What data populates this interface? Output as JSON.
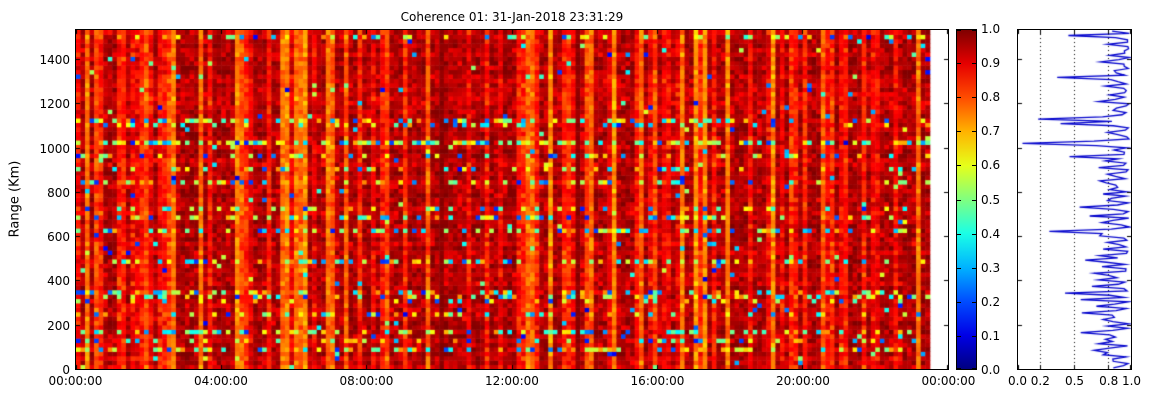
{
  "title": "Coherence 01: 31-Jan-2018 23:31:29",
  "axes": {
    "main": {
      "ylabel": "Range (Km)",
      "y_tick_labels": [
        "0",
        "200",
        "400",
        "600",
        "800",
        "1000",
        "1200",
        "1400"
      ],
      "y_tick_km": [
        0,
        200,
        400,
        600,
        800,
        1000,
        1200,
        1400
      ],
      "x_tick_labels": [
        "00:00:00",
        "04:00:00",
        "08:00:00",
        "12:00:00",
        "16:00:00",
        "20:00:00",
        "00:00:00"
      ],
      "x_tick_hours": [
        0,
        4,
        8,
        12,
        16,
        20,
        24
      ]
    },
    "colorbar": {
      "tick_labels": [
        "0.0",
        "0.1",
        "0.2",
        "0.3",
        "0.4",
        "0.5",
        "0.6",
        "0.7",
        "0.8",
        "0.9",
        "1.0"
      ],
      "tick_values": [
        0,
        0.1,
        0.2,
        0.3,
        0.4,
        0.5,
        0.6,
        0.7,
        0.8,
        0.9,
        1.0
      ]
    },
    "profile": {
      "x_tick_labels": [
        "0.0",
        "0.2",
        "0.5",
        "0.8",
        "1.0"
      ],
      "x_tick_values": [
        0,
        0.2,
        0.5,
        0.8,
        1.0
      ],
      "gridline_values": [
        0.2,
        0.5,
        0.8
      ]
    }
  },
  "colors": {
    "background": "#ffffff",
    "frame": "#000000",
    "profile_line": "#0000cc",
    "gridline": "#000000",
    "jet_stops": [
      "#000080",
      "#0000e6",
      "#004dff",
      "#00b3ff",
      "#1affe6",
      "#80ff80",
      "#e6ff1a",
      "#ffb300",
      "#ff4d00",
      "#e60000",
      "#800000"
    ]
  },
  "chart_data": [
    {
      "type": "heatmap",
      "title": "Coherence 01: 31-Jan-2018 23:31:29",
      "xlabel": "",
      "ylabel": "Range (Km)",
      "x_ticks": [
        "00:00:00",
        "04:00:00",
        "08:00:00",
        "12:00:00",
        "16:00:00",
        "20:00:00",
        "00:00:00"
      ],
      "x_range_hours": [
        0,
        24
      ],
      "y_ticks": [
        0,
        200,
        400,
        600,
        800,
        1000,
        1200,
        1400
      ],
      "y_range_km": [
        0,
        1540
      ],
      "value_range": [
        0.0,
        1.0
      ],
      "colormap": "jet",
      "data_end_hour": 23.525,
      "description": "Radar coherence vs time and range. Background coherence mostly 0.88-1.0 (dark red) with quasi-periodic brighter vertical stripes (0.75-0.9, orange/yellow), two near-black high-coherence vertical lines near 10:00 and 13:50, scattered low-coherence speckles, and horizontal low-coherence bands (yellow/green/cyan/blue) at specific ranges. No data after 23:31:29 (white strip before right axis).",
      "grid": {
        "cols": 192,
        "rows": 77
      },
      "seed": 1318,
      "base_value_range": [
        0.88,
        0.99
      ],
      "stripe_fractions": {
        "strong": 0.15,
        "mild": 0.27
      },
      "speckle_probability": 0.016,
      "dark_column_hours": [
        10.05,
        13.83
      ],
      "low_coherence_bands_km": [
        {
          "km": 1510,
          "halfwidth_km": 8,
          "strength": 0.25
        },
        {
          "km": 1320,
          "halfwidth_km": 8,
          "strength": 0.3
        },
        {
          "km": 1135,
          "halfwidth_km": 10,
          "strength": 0.45
        },
        {
          "km": 1110,
          "halfwidth_km": 6,
          "strength": 0.3
        },
        {
          "km": 1025,
          "halfwidth_km": 12,
          "strength": 0.75
        },
        {
          "km": 965,
          "halfwidth_km": 8,
          "strength": 0.35
        },
        {
          "km": 915,
          "halfwidth_km": 6,
          "strength": 0.25
        },
        {
          "km": 850,
          "halfwidth_km": 10,
          "strength": 0.3
        },
        {
          "km": 730,
          "halfwidth_km": 8,
          "strength": 0.3
        },
        {
          "km": 695,
          "halfwidth_km": 8,
          "strength": 0.35
        },
        {
          "km": 625,
          "halfwidth_km": 10,
          "strength": 0.5
        },
        {
          "km": 490,
          "halfwidth_km": 10,
          "strength": 0.4
        },
        {
          "km": 420,
          "halfwidth_km": 8,
          "strength": 0.3
        },
        {
          "km": 340,
          "halfwidth_km": 10,
          "strength": 0.45
        },
        {
          "km": 315,
          "halfwidth_km": 6,
          "strength": 0.3
        },
        {
          "km": 250,
          "halfwidth_km": 8,
          "strength": 0.3
        },
        {
          "km": 165,
          "halfwidth_km": 12,
          "strength": 0.45
        },
        {
          "km": 135,
          "halfwidth_km": 6,
          "strength": 0.3
        },
        {
          "km": 85,
          "halfwidth_km": 12,
          "strength": 0.5
        },
        {
          "km": 40,
          "halfwidth_km": 8,
          "strength": 0.35
        }
      ]
    },
    {
      "type": "line",
      "title": "",
      "orientation": "value-vs-range profile",
      "xlabel_ticks": [
        0,
        0.2,
        0.5,
        0.8,
        1.0
      ],
      "xlim": [
        0,
        1
      ],
      "ylim_km": [
        0,
        1540
      ],
      "grid": "dotted vertical lines at 0.2, 0.5, 0.8",
      "bins": 154,
      "bin_km": 10,
      "baseline_range": [
        0.86,
        1.0
      ],
      "description": "Median coherence per range gate; hugs 0.93-1.0 with leftward spikes at disturbed ranges.",
      "spikes_km_value": [
        {
          "km": 1510,
          "value": 0.45
        },
        {
          "km": 1470,
          "value": 0.8
        },
        {
          "km": 1425,
          "value": 0.82
        },
        {
          "km": 1390,
          "value": 0.74
        },
        {
          "km": 1355,
          "value": 0.86
        },
        {
          "km": 1320,
          "value": 0.35
        },
        {
          "km": 1285,
          "value": 0.78
        },
        {
          "km": 1240,
          "value": 0.82
        },
        {
          "km": 1210,
          "value": 0.72
        },
        {
          "km": 1170,
          "value": 0.85
        },
        {
          "km": 1135,
          "value": 0.18
        },
        {
          "km": 1110,
          "value": 0.38
        },
        {
          "km": 1070,
          "value": 0.8
        },
        {
          "km": 1025,
          "value": 0.04
        },
        {
          "km": 965,
          "value": 0.46
        },
        {
          "km": 940,
          "value": 0.78
        },
        {
          "km": 915,
          "value": 0.72
        },
        {
          "km": 880,
          "value": 0.8
        },
        {
          "km": 850,
          "value": 0.73
        },
        {
          "km": 815,
          "value": 0.82
        },
        {
          "km": 790,
          "value": 0.76
        },
        {
          "km": 760,
          "value": 0.8
        },
        {
          "km": 730,
          "value": 0.55
        },
        {
          "km": 695,
          "value": 0.64
        },
        {
          "km": 660,
          "value": 0.75
        },
        {
          "km": 625,
          "value": 0.28
        },
        {
          "km": 600,
          "value": 0.73
        },
        {
          "km": 570,
          "value": 0.8
        },
        {
          "km": 540,
          "value": 0.76
        },
        {
          "km": 510,
          "value": 0.73
        },
        {
          "km": 490,
          "value": 0.6
        },
        {
          "km": 460,
          "value": 0.75
        },
        {
          "km": 430,
          "value": 0.68
        },
        {
          "km": 400,
          "value": 0.72
        },
        {
          "km": 370,
          "value": 0.66
        },
        {
          "km": 340,
          "value": 0.42
        },
        {
          "km": 315,
          "value": 0.56
        },
        {
          "km": 280,
          "value": 0.7
        },
        {
          "km": 250,
          "value": 0.57
        },
        {
          "km": 220,
          "value": 0.76
        },
        {
          "km": 190,
          "value": 0.8
        },
        {
          "km": 165,
          "value": 0.56
        },
        {
          "km": 135,
          "value": 0.78
        },
        {
          "km": 115,
          "value": 0.72
        },
        {
          "km": 85,
          "value": 0.68
        },
        {
          "km": 60,
          "value": 0.76
        },
        {
          "km": 35,
          "value": 0.85
        }
      ]
    }
  ]
}
